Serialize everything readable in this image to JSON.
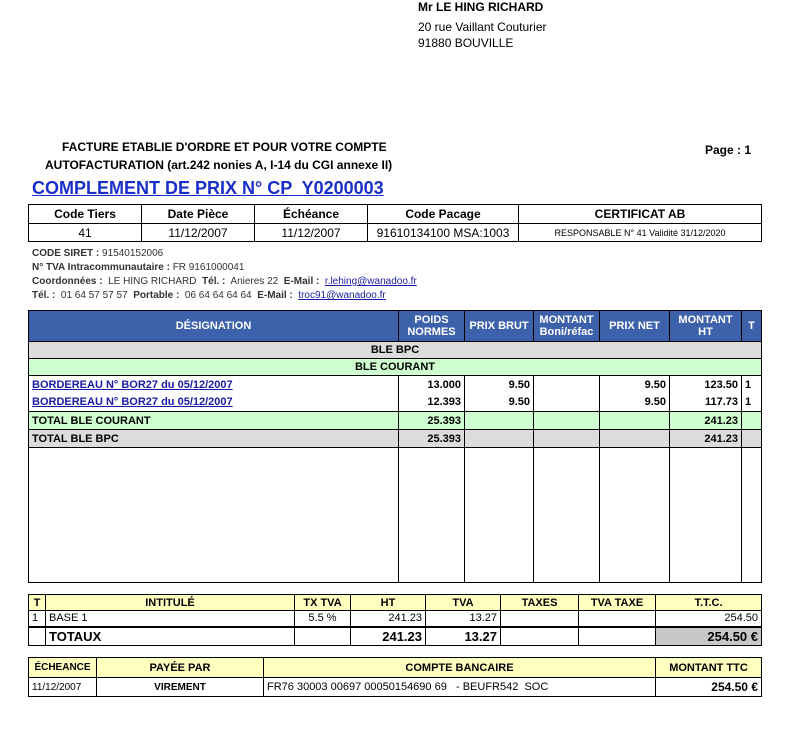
{
  "header": {
    "name": "Mr LE HING RICHARD",
    "address1": "20 rue Vaillant Couturier",
    "address2": "91880 BOUVILLE",
    "heading1": "FACTURE ETABLIE D'ORDRE ET POUR VOTRE COMPTE",
    "heading2": "AUTOFACTURATION (art.242 nonies A, I-14 du CGI annexe II)",
    "page": "Page : 1",
    "title": "COMPLEMENT DE PRIX N° CP  Y0200003"
  },
  "info": {
    "headers": [
      "Code Tiers",
      "Date Pièce",
      "Échéance",
      "Code Pacage",
      "CERTIFICAT AB"
    ],
    "row": [
      "41",
      "11/12/2007",
      "11/12/2007",
      "91610134100 MSA:1003",
      "RESPONSABLE N° 41 Validité 31/12/2020"
    ]
  },
  "details": {
    "siret_label": "CODE SIRET :",
    "siret": "91540152006",
    "tva_label": "N° TVA Intracommunautaire :",
    "tva": "FR 9161000041",
    "coord_label": "Coordonnées :",
    "coord_name": "LE HING RICHARD",
    "tel_label": "Tél. :",
    "tel_place": "Anieres 22",
    "email_label": "E-Mail :",
    "email1": "r.lehing@wanadoo.fr",
    "tel2_label": "Tél. :",
    "tel2": "01 64 57 57 57",
    "mobile_label": "Portable :",
    "mobile": "06 64 64 64 64",
    "email2_label": "E-Mail :",
    "email2": "troc91@wanadoo.fr"
  },
  "lines": {
    "headers": [
      "DÉSIGNATION",
      "POIDS NORMES",
      "PRIX BRUT",
      "MONTANT Boni/réfac",
      "PRIX NET",
      "MONTANT HT",
      "T"
    ],
    "group1": "BLE BPC",
    "group2": "BLE COURANT",
    "rows": [
      {
        "designation": "BORDEREAU N° BOR27 du 05/12/2007",
        "poids": "13.000",
        "prix_brut": "9.50",
        "prix_net": "9.50",
        "montant": "123.50",
        "t": "1"
      },
      {
        "designation": "BORDEREAU N° BOR27 du 05/12/2007",
        "poids": "12.393",
        "prix_brut": "9.50",
        "prix_net": "9.50",
        "montant": "117.73",
        "t": "1"
      }
    ],
    "total1": {
      "label": "TOTAL BLE COURANT",
      "poids": "25.393",
      "montant": "241.23"
    },
    "total2": {
      "label": "TOTAL BLE BPC",
      "poids": "25.393",
      "montant": "241.23"
    }
  },
  "tax": {
    "headers": [
      "T",
      "INTITULÉ",
      "TX TVA",
      "HT",
      "TVA",
      "TAXES",
      "TVA TAXE",
      "T.T.C."
    ],
    "row": {
      "t": "1",
      "intitule": "BASE 1",
      "tx": "5.5 %",
      "ht": "241.23",
      "tva": "13.27",
      "ttc": "254.50"
    },
    "totals": {
      "label": "TOTAUX",
      "ht": "241.23",
      "tva": "13.27",
      "ttc": "254.50 €"
    }
  },
  "payment": {
    "headers": [
      "ÉCHEANCE",
      "PAYÉE PAR",
      "COMPTE BANCAIRE",
      "MONTANT TTC"
    ],
    "row": [
      "11/12/2007",
      "VIREMENT",
      "FR76 30003 00697 00050154690 69   - BEUFR542  SOC",
      "254.50 €"
    ]
  }
}
